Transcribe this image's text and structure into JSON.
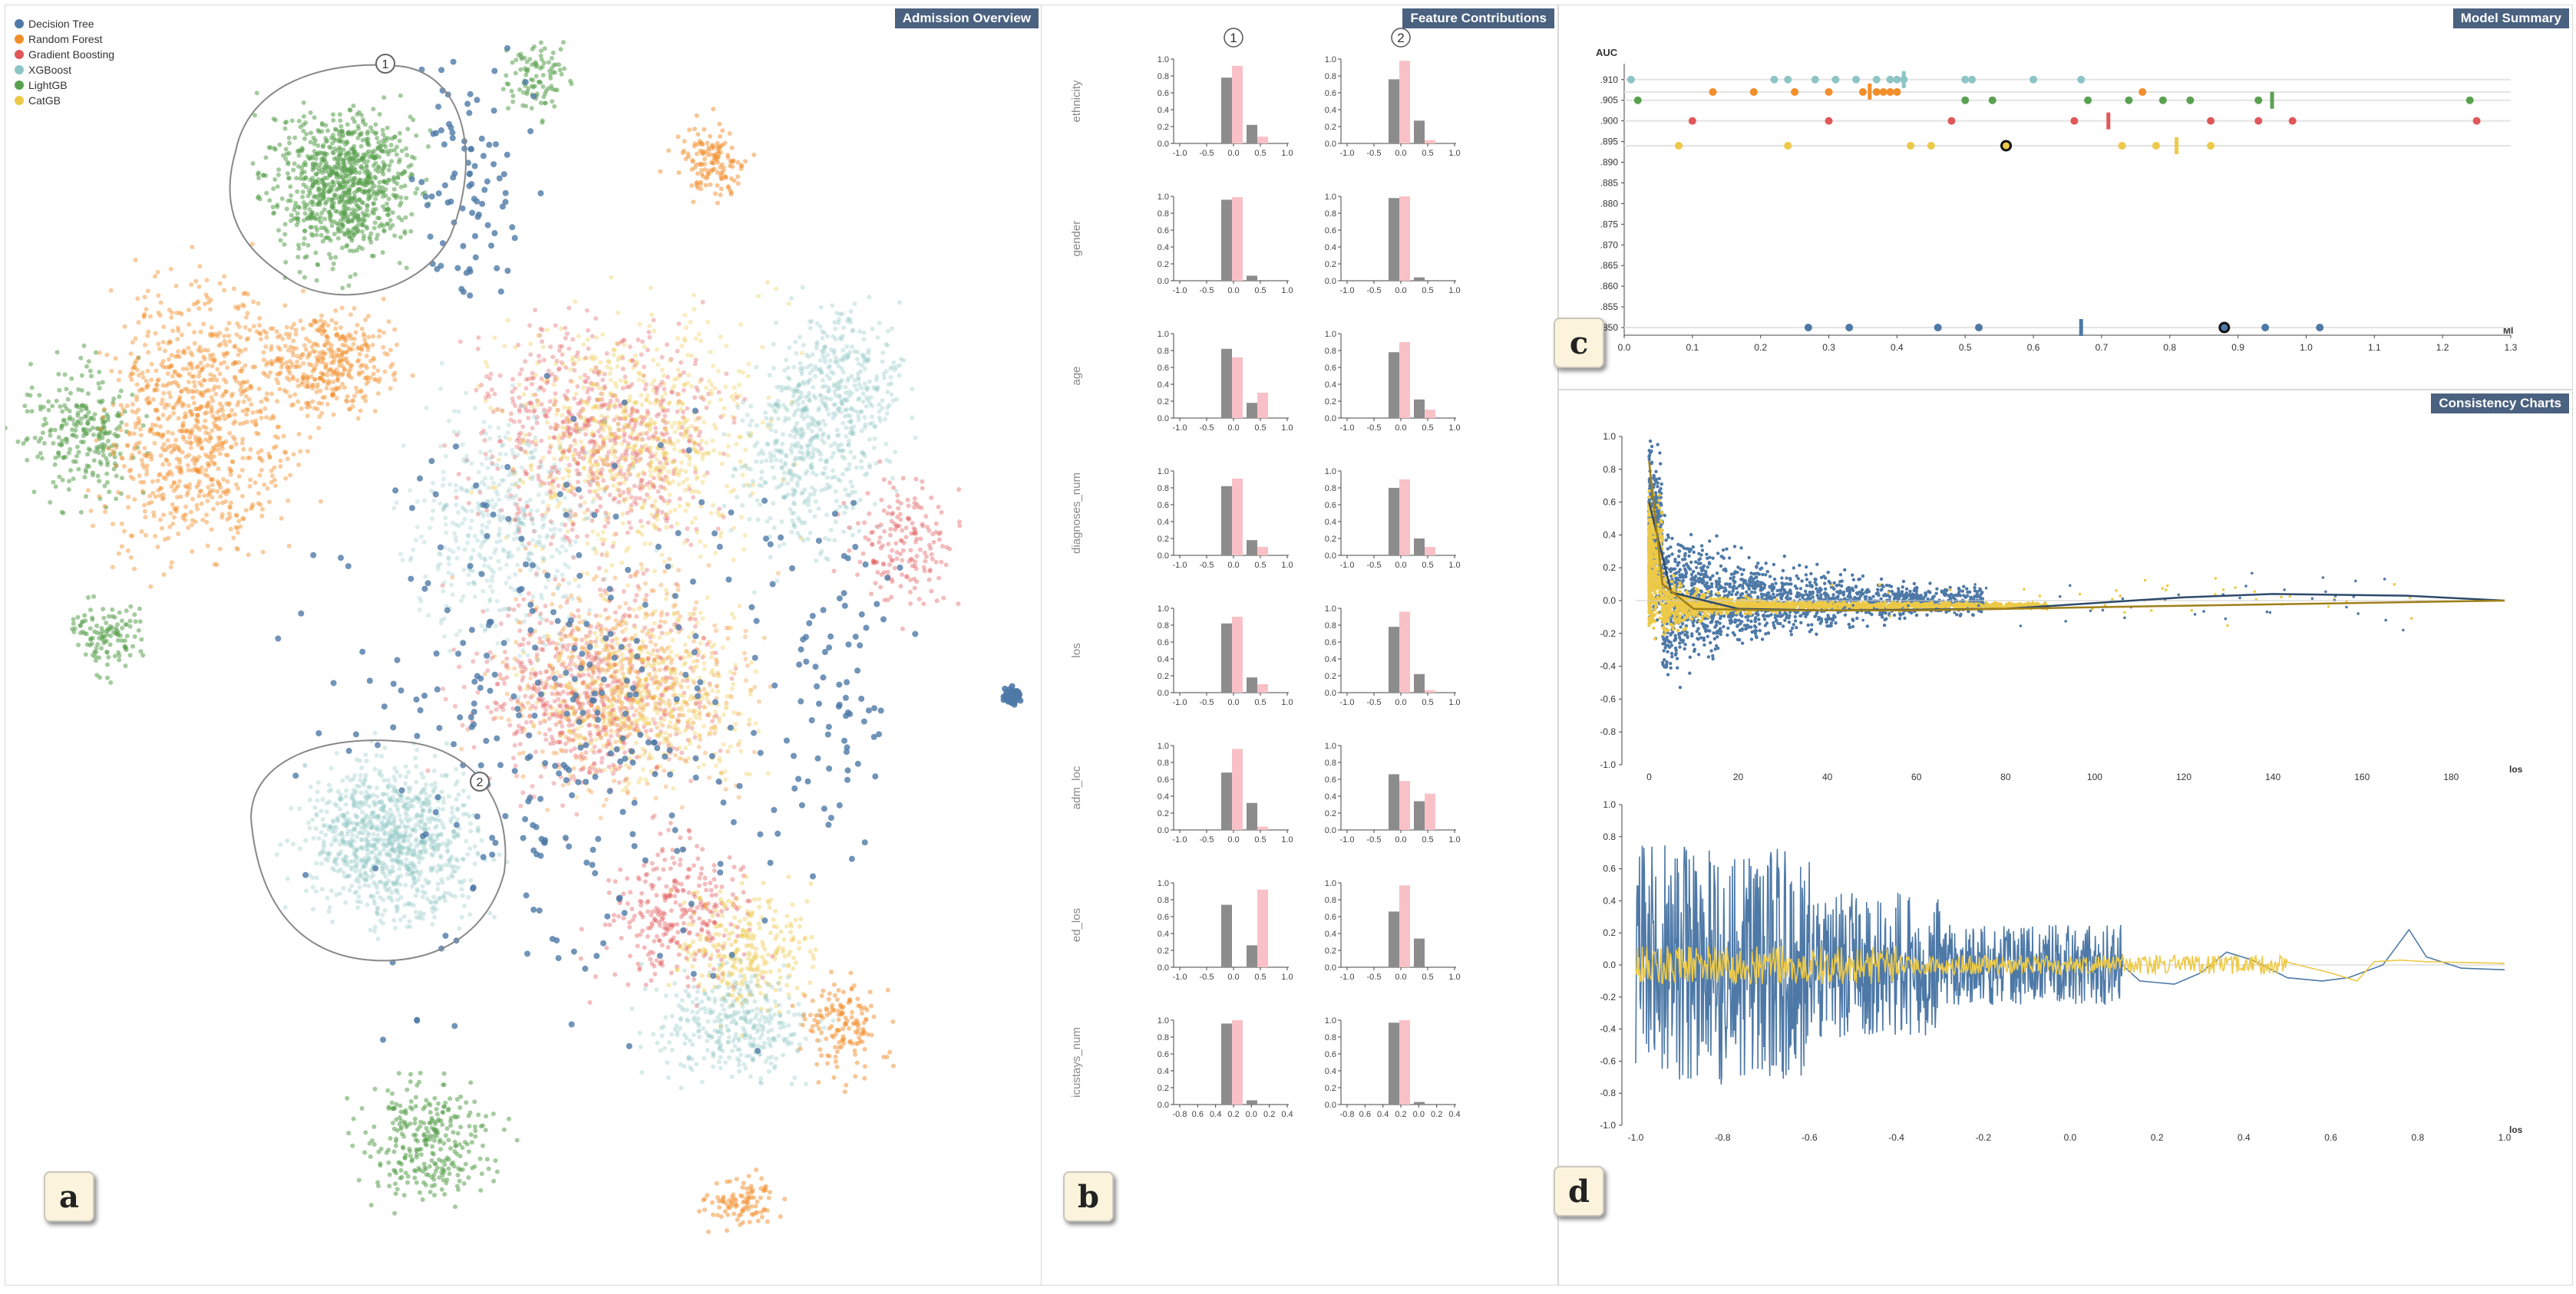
{
  "colors": {
    "decision_tree": "#4e79a7",
    "random_forest": "#f28e2b",
    "gradient_boosting": "#e15759",
    "xgboost": "#8cc5c4",
    "lightgbm": "#59a14f",
    "catgb": "#edc948",
    "bar_gray": "#8c8c8c",
    "bar_pink": "#f9c1c7",
    "title_bg": "#4a6180"
  },
  "panels": {
    "a": {
      "title": "Admission Overview",
      "badge": "a"
    },
    "b": {
      "title": "Feature Contributions",
      "badge": "b"
    },
    "c": {
      "title": "Model Summary",
      "badge": "c"
    },
    "d": {
      "title": "Consistency Charts",
      "badge": "d"
    }
  },
  "legend": [
    {
      "label": "Decision Tree",
      "color": "#4e79a7"
    },
    {
      "label": "Random Forest",
      "color": "#f28e2b"
    },
    {
      "label": "Gradient Boosting",
      "color": "#e15759"
    },
    {
      "label": "XGBoost",
      "color": "#8cc5c4"
    },
    {
      "label": "LightGB",
      "color": "#59a14f"
    },
    {
      "label": "CatGB",
      "color": "#edc948"
    }
  ],
  "clusters": {
    "marker_1": "1",
    "marker_2": "2"
  },
  "chart_data": [
    {
      "type": "scatter",
      "name": "admission-overview",
      "series": [
        "Decision Tree",
        "Random Forest",
        "Gradient Boosting",
        "XGBoost",
        "LightGB",
        "CatGB"
      ]
    },
    {
      "type": "bar",
      "name": "feature-contributions",
      "columns": [
        "1",
        "2"
      ],
      "yticks": [
        "0.0",
        "0.2",
        "0.4",
        "0.6",
        "0.8",
        "1.0"
      ],
      "xticks": [
        "-1.0",
        "-0.5",
        "0.0",
        "0.5",
        "1.0"
      ],
      "xticks_last": [
        "-0.8",
        "0.6",
        "0.4",
        "0.2",
        "0.0",
        "0.2",
        "0.4"
      ],
      "features": [
        {
          "name": "ethnicity",
          "c1": [
            0.78,
            0.92,
            0.22,
            0.08
          ],
          "c2": [
            0.76,
            0.98,
            0.27,
            0.04
          ]
        },
        {
          "name": "gender",
          "c1": [
            0.96,
            0.99,
            0.06,
            0.0
          ],
          "c2": [
            0.98,
            1.0,
            0.04,
            0.0
          ]
        },
        {
          "name": "age",
          "c1": [
            0.82,
            0.72,
            0.18,
            0.3
          ],
          "c2": [
            0.78,
            0.9,
            0.22,
            0.1
          ]
        },
        {
          "name": "diagnoses_num",
          "c1": [
            0.82,
            0.91,
            0.18,
            0.1
          ],
          "c2": [
            0.8,
            0.9,
            0.2,
            0.1
          ]
        },
        {
          "name": "los",
          "c1": [
            0.82,
            0.9,
            0.18,
            0.1
          ],
          "c2": [
            0.78,
            0.96,
            0.22,
            0.03
          ]
        },
        {
          "name": "adm_loc",
          "c1": [
            0.68,
            0.96,
            0.32,
            0.04
          ],
          "c2": [
            0.66,
            0.58,
            0.34,
            0.43
          ]
        },
        {
          "name": "ed_los",
          "c1": [
            0.74,
            0.0,
            0.26,
            0.92
          ],
          "c2": [
            0.66,
            0.97,
            0.34,
            0.0
          ]
        },
        {
          "name": "icustays_num",
          "c1": [
            0.96,
            1.0,
            0.05,
            0.0
          ],
          "c2": [
            0.97,
            1.0,
            0.03,
            0.0
          ]
        }
      ]
    },
    {
      "type": "scatter",
      "name": "model-summary",
      "ylabel": "AUC",
      "xlabel": "MI",
      "yticks": [
        ".910",
        ".905",
        ".900",
        ".895",
        ".890",
        ".885",
        ".880",
        ".875",
        ".870",
        ".865",
        ".860",
        ".855",
        ".850"
      ],
      "xticks": [
        "0.0",
        "0.1",
        "0.2",
        "0.3",
        "0.4",
        "0.5",
        "0.6",
        "0.7",
        "0.8",
        "0.9",
        "1.0",
        "1.1",
        "1.2",
        "1.3"
      ],
      "xlim": [
        0,
        1.3
      ],
      "ylim": [
        0.85,
        0.912
      ],
      "rows": [
        {
          "model": "XGBoost",
          "auc": 0.91,
          "mi": [
            0.01,
            0.22,
            0.24,
            0.28,
            0.31,
            0.34,
            0.37,
            0.39,
            0.4,
            0.41,
            0.5,
            0.51,
            0.6,
            0.67
          ],
          "marker": 0.41
        },
        {
          "model": "Random Forest",
          "auc": 0.907,
          "mi": [
            0.13,
            0.19,
            0.25,
            0.3,
            0.35,
            0.37,
            0.38,
            0.39,
            0.4,
            0.76
          ],
          "marker": 0.36
        },
        {
          "model": "LightGB",
          "auc": 0.905,
          "mi": [
            0.02,
            0.5,
            0.54,
            0.68,
            0.74,
            0.79,
            0.83,
            0.93,
            1.24
          ],
          "marker": 0.95
        },
        {
          "model": "Gradient Boosting",
          "auc": 0.9,
          "mi": [
            0.1,
            0.3,
            0.48,
            0.66,
            0.86,
            0.93,
            0.98,
            1.25
          ],
          "marker": 0.71
        },
        {
          "model": "CatGB",
          "auc": 0.894,
          "mi": [
            0.08,
            0.24,
            0.42,
            0.45,
            0.56,
            0.73,
            0.78,
            0.86
          ],
          "marker": 0.81,
          "highlight": 0.56
        },
        {
          "model": "Decision Tree",
          "auc": 0.85,
          "mi": [
            0.27,
            0.33,
            0.46,
            0.52,
            0.88,
            0.94,
            1.02
          ],
          "marker": 0.67,
          "highlight": 0.88
        }
      ]
    },
    {
      "type": "scatter",
      "name": "consistency-top",
      "xlabel": "los",
      "xticks": [
        "0",
        "20",
        "40",
        "60",
        "80",
        "100",
        "120",
        "140",
        "160",
        "180"
      ],
      "yticks": [
        "1.0",
        "0.8",
        "0.6",
        "0.4",
        "0.2",
        "0.0",
        "-0.2",
        "-0.4",
        "-0.6",
        "-0.8",
        "-1.0"
      ],
      "xlim": [
        -3,
        192
      ],
      "ylim": [
        -1.0,
        1.0
      ],
      "series": [
        {
          "name": "Decision Tree",
          "trend": [
            [
              0,
              0.6
            ],
            [
              5,
              0.05
            ],
            [
              20,
              -0.05
            ],
            [
              40,
              -0.06
            ],
            [
              80,
              -0.05
            ],
            [
              120,
              0.02
            ],
            [
              140,
              0.04
            ],
            [
              170,
              0.03
            ],
            [
              192,
              0.0
            ]
          ]
        },
        {
          "name": "CatGB",
          "trend": [
            [
              0,
              0.85
            ],
            [
              3,
              0.1
            ],
            [
              10,
              -0.05
            ],
            [
              30,
              -0.06
            ],
            [
              60,
              -0.06
            ],
            [
              100,
              -0.04
            ],
            [
              192,
              0.0
            ]
          ]
        }
      ]
    },
    {
      "type": "line",
      "name": "consistency-bottom",
      "xlabel": "los",
      "xticks": [
        "-1.0",
        "-0.8",
        "-0.6",
        "-0.4",
        "-0.2",
        "0.0",
        "0.2",
        "0.4",
        "0.6",
        "0.8",
        "1.0"
      ],
      "yticks": [
        "1.0",
        "0.8",
        "0.6",
        "0.4",
        "0.2",
        "0.0",
        "-0.2",
        "-0.4",
        "-0.6",
        "-0.8",
        "-1.0"
      ],
      "xlim": [
        -1.0,
        1.0
      ],
      "ylim": [
        -1.0,
        1.0
      ],
      "series": [
        "Decision Tree",
        "CatGB"
      ]
    }
  ]
}
